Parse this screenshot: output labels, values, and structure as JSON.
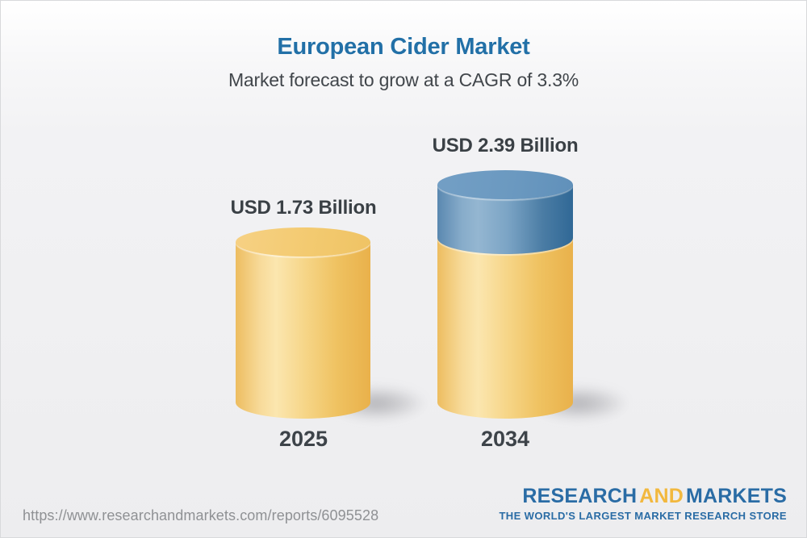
{
  "header": {
    "title": "European Cider Market",
    "subtitle": "Market forecast to grow at a CAGR of 3.3%"
  },
  "chart_data": {
    "type": "bar",
    "variant": "3d-cylinder-infographic",
    "title": "European Cider Market",
    "subtitle": "Market forecast to grow at a CAGR of 3.3%",
    "cagr_percent": 3.3,
    "unit": "USD Billion",
    "categories": [
      "2025",
      "2034"
    ],
    "values": [
      1.73,
      2.39
    ],
    "value_labels": [
      "USD 1.73 Billion",
      "USD 2.39 Billion"
    ],
    "series_note": "2034 bar shows 2025 base in gold plus growth segment in blue on top",
    "legend": "none",
    "grid": false,
    "axes": "none",
    "colors": {
      "base_gold": "#F0C36A",
      "growth_blue": "#4E80AC",
      "title_blue": "#2270A7",
      "label_gray": "#3A4045"
    }
  },
  "footer": {
    "url": "https://www.researchandmarkets.com/reports/6095528",
    "logo": {
      "part1": "RESEARCH",
      "part2": "AND",
      "part3": "MARKETS",
      "tagline": "THE WORLD'S LARGEST MARKET RESEARCH STORE",
      "blue": "#2A6CA5",
      "gold": "#F2B83E"
    }
  }
}
